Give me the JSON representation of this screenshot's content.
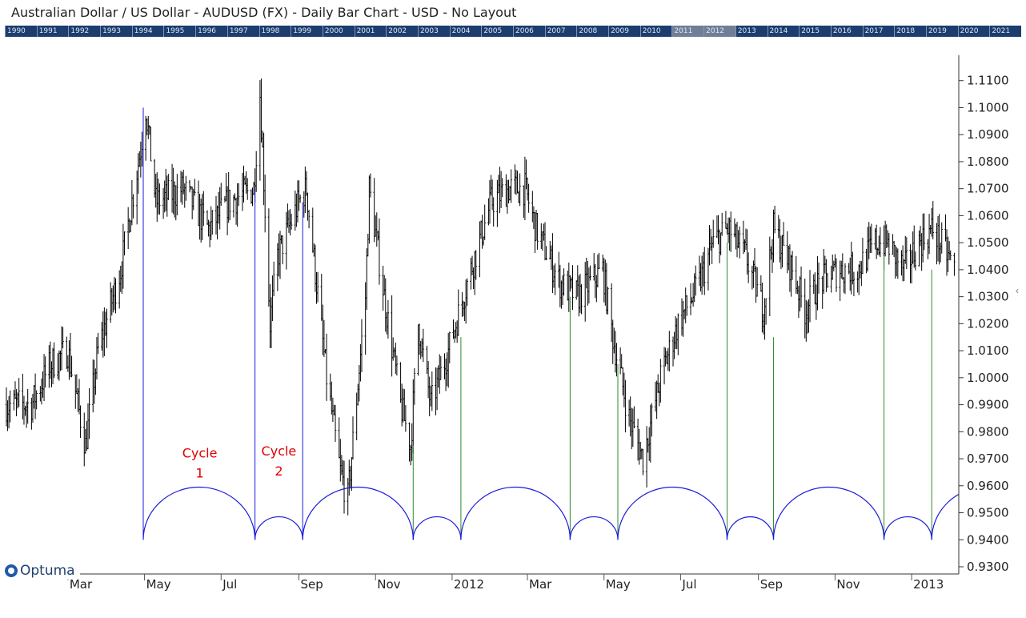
{
  "window": {
    "title": "Australian Dollar / US Dollar - AUDUSD (FX) - Daily Bar Chart - USD - No Layout"
  },
  "overview_strip": {
    "years": [
      "1990",
      "1991",
      "1992",
      "1993",
      "1994",
      "1995",
      "1996",
      "1997",
      "1998",
      "1999",
      "2000",
      "2001",
      "2002",
      "2003",
      "2004",
      "2005",
      "2006",
      "2007",
      "2008",
      "2009",
      "2010",
      "2011",
      "2012",
      "2013",
      "2014",
      "2015",
      "2016",
      "2017",
      "2018",
      "2019",
      "2020",
      "2021"
    ],
    "selected": [
      "2011",
      "2012"
    ]
  },
  "logo": {
    "text": "Optuma"
  },
  "colors": {
    "bars": "#000000",
    "cycle_arc": "#1a1adb",
    "cycle_line_blue": "#1a1adb",
    "cycle_line_green": "#2e8b2e",
    "cycle_label": "#e00000",
    "strip": "#1c3d6e"
  },
  "chart_data": {
    "type": "bar",
    "subtype": "ohlc-daily",
    "y_axis": {
      "range": [
        0.93,
        1.12
      ],
      "ticks": [
        0.93,
        0.94,
        0.95,
        0.96,
        0.97,
        0.98,
        0.99,
        1.0,
        1.01,
        1.02,
        1.03,
        1.04,
        1.05,
        1.06,
        1.07,
        1.08,
        1.09,
        1.1,
        1.11
      ],
      "tick_labels": [
        "0.9300",
        "0.9400",
        "0.9500",
        "0.9600",
        "0.9700",
        "0.9800",
        "0.9900",
        "1.0000",
        "1.0100",
        "1.0200",
        "1.0300",
        "1.0400",
        "1.0500",
        "1.0600",
        "1.0700",
        "1.0800",
        "1.0900",
        "1.1000",
        "1.1100"
      ],
      "position": "right"
    },
    "x_axis": {
      "range": [
        "2011-01-11",
        "2013-02-05"
      ],
      "ticks": [
        {
          "date": "2011-03-01",
          "label": "Mar"
        },
        {
          "date": "2011-05-01",
          "label": "May"
        },
        {
          "date": "2011-07-01",
          "label": "Jul"
        },
        {
          "date": "2011-09-01",
          "label": "Sep"
        },
        {
          "date": "2011-11-01",
          "label": "Nov"
        },
        {
          "date": "2012-01-01",
          "label": "2012"
        },
        {
          "date": "2012-03-01",
          "label": "Mar"
        },
        {
          "date": "2012-05-01",
          "label": "May"
        },
        {
          "date": "2012-07-01",
          "label": "Jul"
        },
        {
          "date": "2012-09-01",
          "label": "Sep"
        },
        {
          "date": "2012-11-01",
          "label": "Nov"
        },
        {
          "date": "2013-01-01",
          "label": "2013"
        }
      ]
    },
    "price_path": [
      {
        "date": "2011-01-11",
        "close": 0.99
      },
      {
        "date": "2011-01-31",
        "close": 0.99
      },
      {
        "date": "2011-02-15",
        "close": 1.005
      },
      {
        "date": "2011-03-01",
        "close": 1.01
      },
      {
        "date": "2011-03-15",
        "close": 0.975
      },
      {
        "date": "2011-03-25",
        "close": 1.01
      },
      {
        "date": "2011-04-12",
        "close": 1.04
      },
      {
        "date": "2011-04-28",
        "close": 1.085
      },
      {
        "date": "2011-05-02",
        "close": 1.1
      },
      {
        "date": "2011-05-10",
        "close": 1.065
      },
      {
        "date": "2011-06-01",
        "close": 1.07
      },
      {
        "date": "2011-06-21",
        "close": 1.055
      },
      {
        "date": "2011-07-07",
        "close": 1.065
      },
      {
        "date": "2011-07-27",
        "close": 1.07
      },
      {
        "date": "2011-08-01",
        "close": 1.105
      },
      {
        "date": "2011-08-09",
        "close": 1.02
      },
      {
        "date": "2011-08-15",
        "close": 1.045
      },
      {
        "date": "2011-09-01",
        "close": 1.065
      },
      {
        "date": "2011-09-07",
        "close": 1.07
      },
      {
        "date": "2011-09-23",
        "close": 1.0
      },
      {
        "date": "2011-10-04",
        "close": 0.965
      },
      {
        "date": "2011-10-10",
        "close": 0.955
      },
      {
        "date": "2011-10-24",
        "close": 1.03
      },
      {
        "date": "2011-10-27",
        "close": 1.07
      },
      {
        "date": "2011-11-08",
        "close": 1.03
      },
      {
        "date": "2011-11-21",
        "close": 0.99
      },
      {
        "date": "2011-11-29",
        "close": 0.975
      },
      {
        "date": "2011-12-05",
        "close": 1.02
      },
      {
        "date": "2011-12-15",
        "close": 0.99
      },
      {
        "date": "2011-12-29",
        "close": 1.01
      },
      {
        "date": "2012-01-16",
        "close": 1.04
      },
      {
        "date": "2012-02-01",
        "close": 1.065
      },
      {
        "date": "2012-02-15",
        "close": 1.07
      },
      {
        "date": "2012-02-28",
        "close": 1.07
      },
      {
        "date": "2012-03-08",
        "close": 1.055
      },
      {
        "date": "2012-03-27",
        "close": 1.035
      },
      {
        "date": "2012-04-10",
        "close": 1.03
      },
      {
        "date": "2012-04-30",
        "close": 1.04
      },
      {
        "date": "2012-05-08",
        "close": 1.015
      },
      {
        "date": "2012-05-21",
        "close": 0.985
      },
      {
        "date": "2012-06-01",
        "close": 0.97
      },
      {
        "date": "2012-06-15",
        "close": 1.0
      },
      {
        "date": "2012-06-29",
        "close": 1.02
      },
      {
        "date": "2012-07-16",
        "close": 1.035
      },
      {
        "date": "2012-07-27",
        "close": 1.05
      },
      {
        "date": "2012-08-08",
        "close": 1.055
      },
      {
        "date": "2012-08-22",
        "close": 1.045
      },
      {
        "date": "2012-09-05",
        "close": 1.025
      },
      {
        "date": "2012-09-13",
        "close": 1.055
      },
      {
        "date": "2012-09-28",
        "close": 1.04
      },
      {
        "date": "2012-10-08",
        "close": 1.025
      },
      {
        "date": "2012-10-19",
        "close": 1.035
      },
      {
        "date": "2012-11-05",
        "close": 1.04
      },
      {
        "date": "2012-11-19",
        "close": 1.04
      },
      {
        "date": "2012-12-03",
        "close": 1.05
      },
      {
        "date": "2012-12-12",
        "close": 1.05
      },
      {
        "date": "2012-12-26",
        "close": 1.04
      },
      {
        "date": "2013-01-07",
        "close": 1.05
      },
      {
        "date": "2013-01-18",
        "close": 1.055
      },
      {
        "date": "2013-02-05",
        "close": 1.04
      }
    ],
    "cycles": {
      "baseline": 0.94,
      "large_arc_height": 0.0195,
      "small_arc_height": 0.0085,
      "markers": [
        {
          "date": "2011-04-30",
          "line_top": 1.1,
          "color": "blue"
        },
        {
          "date": "2011-07-28",
          "line_top": 1.07,
          "color": "blue"
        },
        {
          "date": "2011-09-04",
          "line_top": 1.065,
          "color": "blue"
        },
        {
          "date": "2011-12-01",
          "line_top": 0.975,
          "color": "green"
        },
        {
          "date": "2012-01-08",
          "line_top": 1.015,
          "color": "green"
        },
        {
          "date": "2012-04-04",
          "line_top": 1.03,
          "color": "green"
        },
        {
          "date": "2012-05-12",
          "line_top": 1.005,
          "color": "green"
        },
        {
          "date": "2012-08-07",
          "line_top": 1.05,
          "color": "green"
        },
        {
          "date": "2012-09-13",
          "line_top": 1.015,
          "color": "green"
        },
        {
          "date": "2012-12-10",
          "line_top": 1.045,
          "color": "green"
        },
        {
          "date": "2013-01-17",
          "line_top": 1.04,
          "color": "green"
        }
      ],
      "arcs": [
        {
          "start": "2011-04-30",
          "end": "2011-07-28",
          "size": "large"
        },
        {
          "start": "2011-07-28",
          "end": "2011-09-04",
          "size": "small"
        },
        {
          "start": "2011-09-04",
          "end": "2011-12-01",
          "size": "large"
        },
        {
          "start": "2011-12-01",
          "end": "2012-01-08",
          "size": "small"
        },
        {
          "start": "2012-01-08",
          "end": "2012-04-04",
          "size": "large"
        },
        {
          "start": "2012-04-04",
          "end": "2012-05-12",
          "size": "small"
        },
        {
          "start": "2012-05-12",
          "end": "2012-08-07",
          "size": "large"
        },
        {
          "start": "2012-08-07",
          "end": "2012-09-13",
          "size": "small"
        },
        {
          "start": "2012-09-13",
          "end": "2012-12-10",
          "size": "large"
        },
        {
          "start": "2012-12-10",
          "end": "2013-01-17",
          "size": "small"
        },
        {
          "start": "2013-01-17",
          "end": "2013-04-14",
          "size": "large"
        }
      ],
      "labels": [
        {
          "lines": [
            "Cycle",
            "1"
          ],
          "date": "2011-06-14",
          "price": 0.9705
        },
        {
          "lines": [
            "Cycle",
            "2"
          ],
          "date": "2011-08-16",
          "price": 0.9712
        }
      ]
    }
  }
}
